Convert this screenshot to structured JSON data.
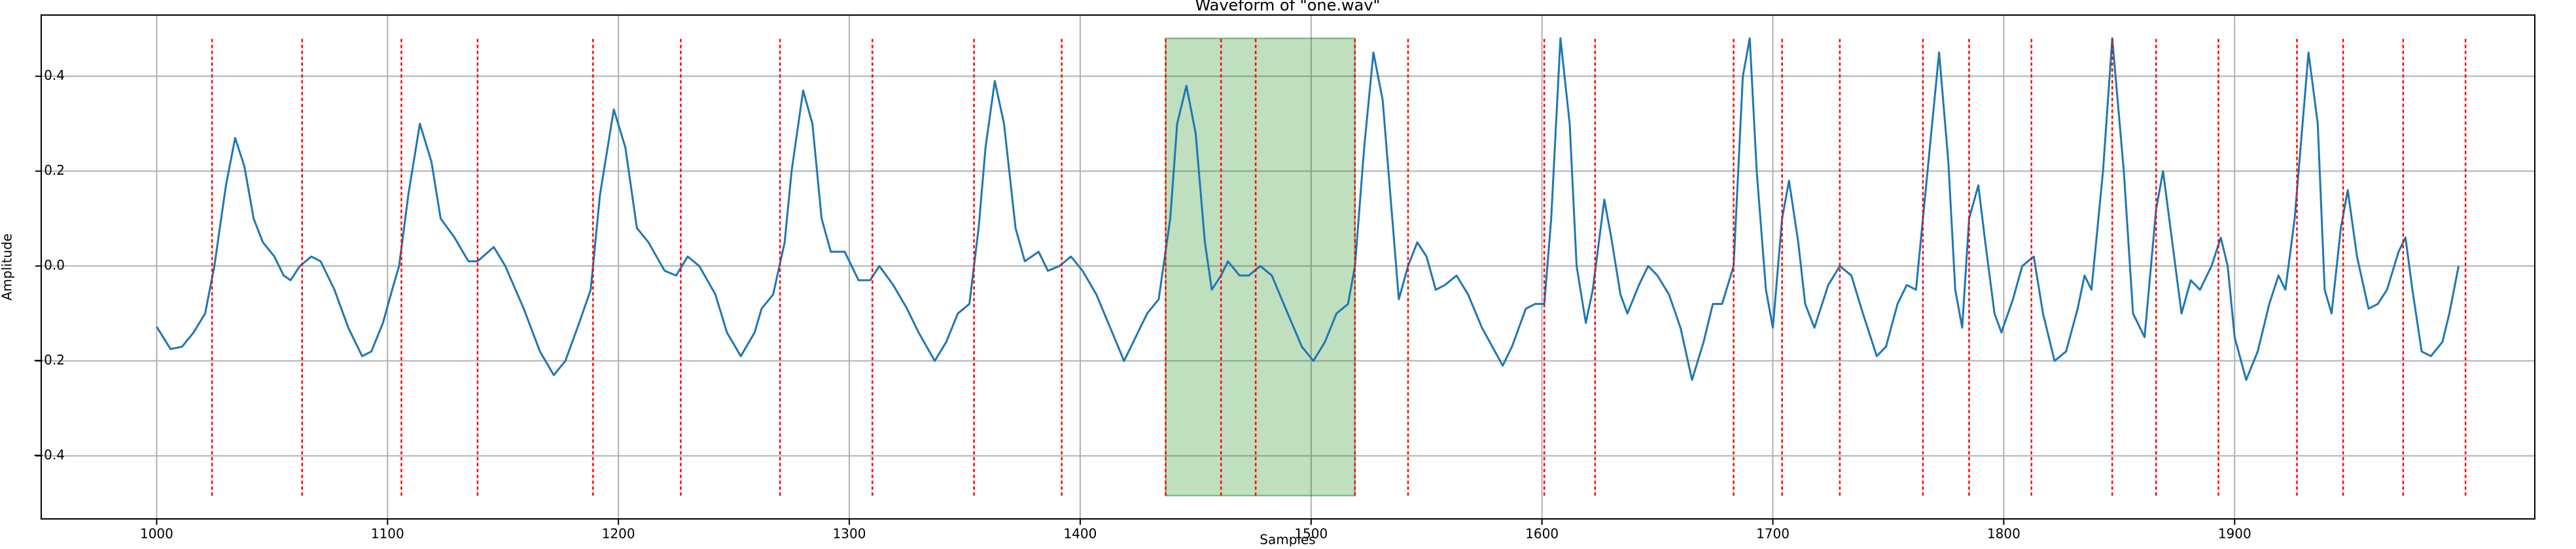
{
  "chart_data": {
    "type": "line",
    "title": "Waveform of \"one.wav\"",
    "xlabel": "Samples",
    "ylabel": "Amplitude",
    "xlim": [
      950,
      2030
    ],
    "ylim": [
      -0.533,
      0.529
    ],
    "xticks": [
      1000,
      1100,
      1200,
      1300,
      1400,
      1500,
      1600,
      1700,
      1800,
      1900
    ],
    "yticks": [
      {
        "value": -0.4,
        "label": "−0.4"
      },
      {
        "value": -0.2,
        "label": "−0.2"
      },
      {
        "value": 0,
        "label": "0.0"
      },
      {
        "value": 0.2,
        "label": "0.2"
      },
      {
        "value": 0.4,
        "label": "0.4"
      }
    ],
    "grid": true,
    "series": [
      {
        "color": "#1f77b4",
        "x": [
          1000,
          1006,
          1011,
          1016,
          1021,
          1025,
          1030,
          1034,
          1038,
          1042,
          1046,
          1051,
          1055,
          1058,
          1062,
          1067,
          1071,
          1077,
          1083,
          1089,
          1093,
          1098,
          1102,
          1105,
          1109,
          1114,
          1119,
          1123,
          1129,
          1135,
          1139,
          1146,
          1151,
          1159,
          1166,
          1172,
          1177,
          1183,
          1188,
          1192,
          1198,
          1203,
          1208,
          1213,
          1220,
          1225,
          1230,
          1235,
          1242,
          1247,
          1253,
          1259,
          1262,
          1267,
          1272,
          1275,
          1280,
          1284,
          1288,
          1292,
          1298,
          1304,
          1309,
          1313,
          1319,
          1325,
          1330,
          1337,
          1342,
          1347,
          1352,
          1356,
          1359,
          1363,
          1367,
          1372,
          1376,
          1382,
          1386,
          1391,
          1396,
          1401,
          1407,
          1413,
          1419,
          1424,
          1429,
          1434,
          1439,
          1442,
          1446,
          1450,
          1454,
          1457,
          1461,
          1464,
          1469,
          1473,
          1478,
          1483,
          1489,
          1496,
          1501,
          1506,
          1511,
          1516,
          1519,
          1523,
          1527,
          1531,
          1536,
          1538,
          1542,
          1546,
          1550,
          1554,
          1558,
          1563,
          1568,
          1574,
          1583,
          1587,
          1593,
          1597,
          1601,
          1604,
          1608,
          1612,
          1615,
          1619,
          1622,
          1627,
          1630,
          1634,
          1637,
          1642,
          1646,
          1650,
          1655,
          1660,
          1665,
          1670,
          1674,
          1678,
          1683,
          1687,
          1690,
          1693,
          1697,
          1700,
          1704,
          1707,
          1711,
          1714,
          1718,
          1724,
          1729,
          1734,
          1739,
          1745,
          1749,
          1754,
          1758,
          1762,
          1767,
          1772,
          1776,
          1779,
          1782,
          1785,
          1789,
          1792,
          1796,
          1799,
          1804,
          1808,
          1813,
          1817,
          1822,
          1827,
          1832,
          1835,
          1838,
          1843,
          1847,
          1852,
          1856,
          1861,
          1866,
          1869,
          1873,
          1877,
          1881,
          1885,
          1890,
          1894,
          1897,
          1900,
          1905,
          1910,
          1915,
          1919,
          1922,
          1926,
          1932,
          1936,
          1939,
          1942,
          1946,
          1949,
          1953,
          1958,
          1962,
          1966,
          1971,
          1974,
          1977,
          1981,
          1985,
          1990,
          1993,
          1997
        ],
        "values": [
          -0.128,
          -0.175,
          -0.17,
          -0.14,
          -0.1,
          0.0,
          0.17,
          0.27,
          0.21,
          0.1,
          0.05,
          0.02,
          -0.02,
          -0.03,
          0.0,
          0.02,
          0.01,
          -0.05,
          -0.13,
          -0.19,
          -0.18,
          -0.12,
          -0.05,
          0.0,
          0.15,
          0.3,
          0.22,
          0.1,
          0.06,
          0.01,
          0.01,
          0.04,
          0.0,
          -0.09,
          -0.18,
          -0.23,
          -0.2,
          -0.12,
          -0.05,
          0.15,
          0.33,
          0.25,
          0.08,
          0.05,
          -0.01,
          -0.02,
          0.02,
          0.0,
          -0.06,
          -0.14,
          -0.19,
          -0.14,
          -0.09,
          -0.06,
          0.05,
          0.2,
          0.37,
          0.3,
          0.1,
          0.03,
          0.03,
          -0.03,
          -0.03,
          0.0,
          -0.04,
          -0.09,
          -0.14,
          -0.2,
          -0.16,
          -0.1,
          -0.08,
          0.08,
          0.25,
          0.39,
          0.3,
          0.08,
          0.01,
          0.03,
          -0.01,
          0.0,
          0.02,
          -0.01,
          -0.06,
          -0.13,
          -0.2,
          -0.15,
          -0.1,
          -0.07,
          0.1,
          0.3,
          0.38,
          0.28,
          0.05,
          -0.05,
          -0.02,
          0.01,
          -0.02,
          -0.02,
          0.0,
          -0.02,
          -0.09,
          -0.17,
          -0.2,
          -0.16,
          -0.1,
          -0.08,
          0.0,
          0.25,
          0.45,
          0.35,
          0.05,
          -0.07,
          0.0,
          0.05,
          0.02,
          -0.05,
          -0.04,
          -0.02,
          -0.06,
          -0.13,
          -0.21,
          -0.17,
          -0.09,
          -0.08,
          -0.08,
          0.1,
          0.48,
          0.3,
          0.0,
          -0.12,
          -0.05,
          0.14,
          0.06,
          -0.06,
          -0.1,
          -0.04,
          0.0,
          -0.02,
          -0.06,
          -0.13,
          -0.24,
          -0.16,
          -0.08,
          -0.08,
          0.0,
          0.4,
          0.48,
          0.2,
          -0.05,
          -0.13,
          0.1,
          0.18,
          0.05,
          -0.08,
          -0.13,
          -0.04,
          0.0,
          -0.02,
          -0.1,
          -0.19,
          -0.17,
          -0.08,
          -0.04,
          -0.05,
          0.2,
          0.45,
          0.22,
          -0.05,
          -0.13,
          0.1,
          0.17,
          0.05,
          -0.1,
          -0.14,
          -0.07,
          0.0,
          0.02,
          -0.1,
          -0.2,
          -0.18,
          -0.09,
          -0.02,
          -0.05,
          0.2,
          0.48,
          0.2,
          -0.1,
          -0.15,
          0.12,
          0.2,
          0.05,
          -0.1,
          -0.03,
          -0.05,
          0.0,
          0.06,
          0.0,
          -0.15,
          -0.24,
          -0.18,
          -0.08,
          -0.02,
          -0.05,
          0.1,
          0.45,
          0.3,
          -0.05,
          -0.1,
          0.08,
          0.16,
          0.02,
          -0.09,
          -0.08,
          -0.05,
          0.03,
          0.06,
          -0.05,
          -0.18,
          -0.19,
          -0.16,
          -0.1,
          0.0
        ]
      }
    ],
    "markers": {
      "color": "#ff0000",
      "ymin": -0.484,
      "ymax": 0.48,
      "x": [
        1024,
        1063,
        1106,
        1139,
        1189,
        1227,
        1270,
        1310,
        1354,
        1392,
        1437,
        1461,
        1476,
        1519,
        1542,
        1601,
        1623,
        1683,
        1704,
        1729,
        1765,
        1785,
        1812,
        1847,
        1866,
        1893,
        1927,
        1947,
        1973,
        2000
      ]
    },
    "region": {
      "color": "#008000",
      "x": [
        1437,
        1519
      ],
      "ymin": -0.484,
      "ymax": 0.48
    }
  }
}
